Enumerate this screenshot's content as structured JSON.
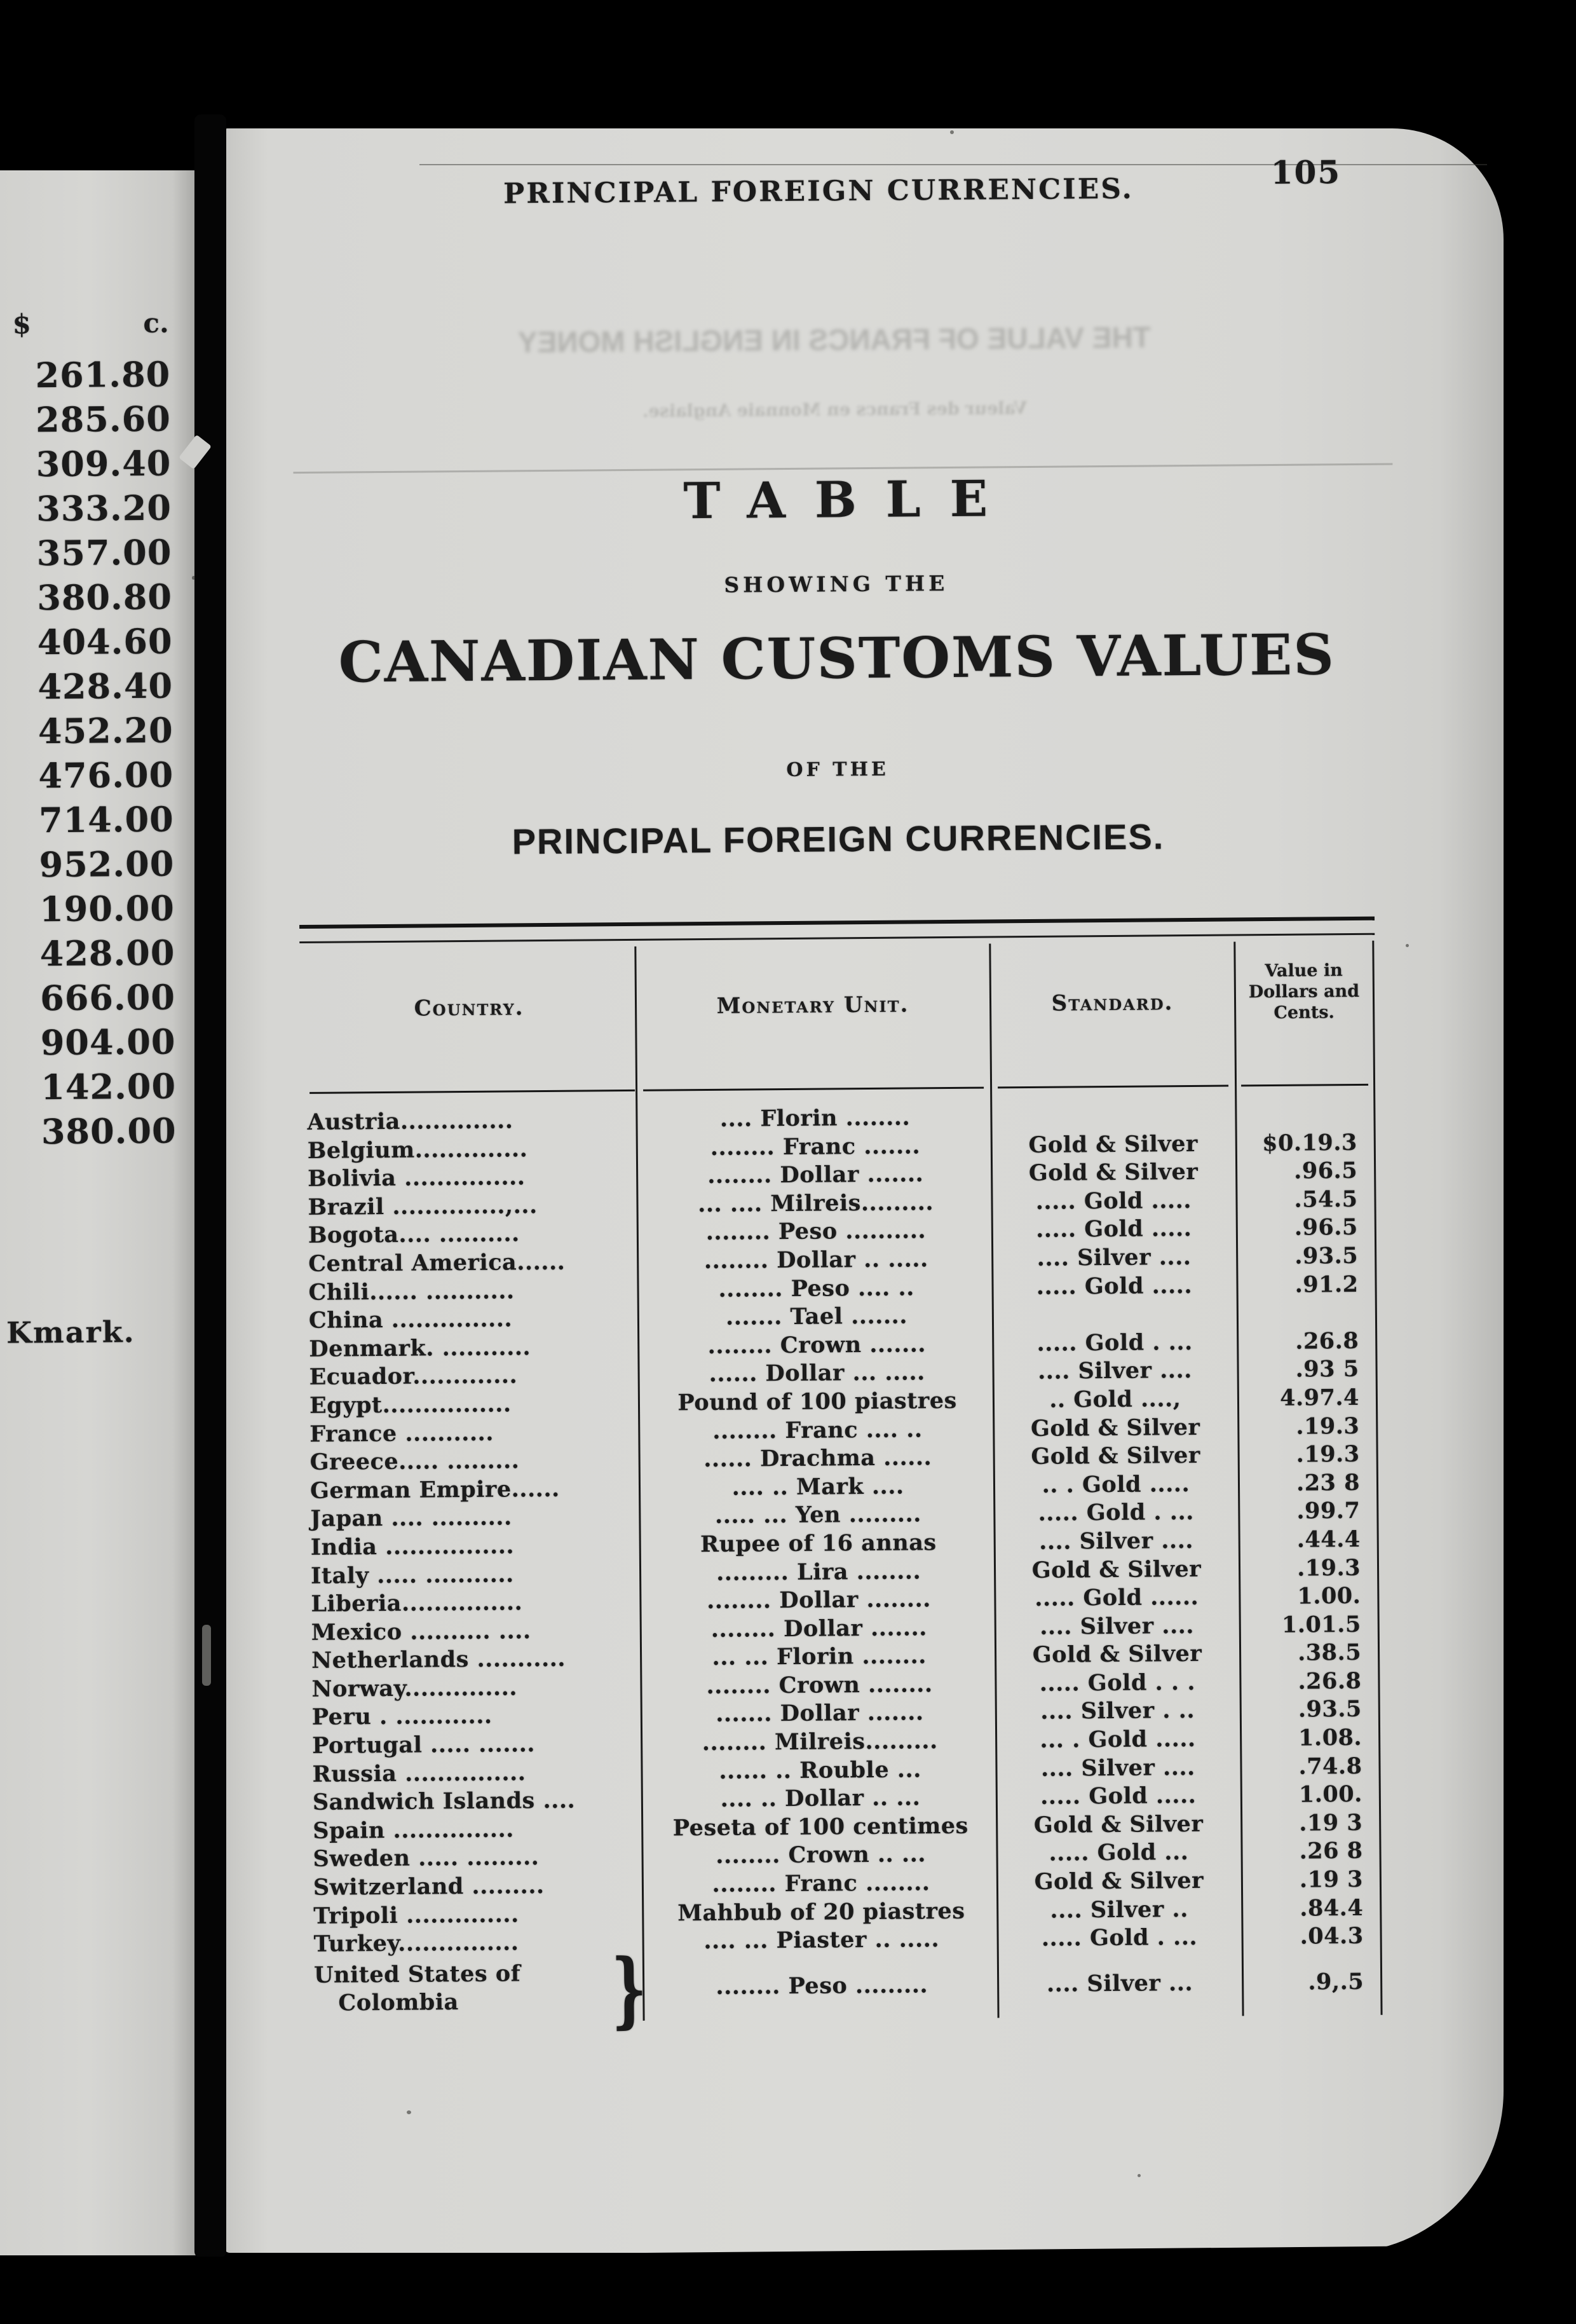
{
  "colors": {
    "paper": "#d7d7d4",
    "ink": "#1b1b1b",
    "background": "#000000"
  },
  "header": {
    "running_title": "PRINCIPAL FOREIGN CURRENCIES.",
    "page_number": "105"
  },
  "title_block": {
    "line1": "TABLE",
    "line2": "SHOWING THE",
    "line3": "CANADIAN CUSTOMS VALUES",
    "line4": "OF THE",
    "line5": "PRINCIPAL FOREIGN CURRENCIES."
  },
  "bleed_through": {
    "line1": "THE VALUE OF FRANCS IN ENGLISH MONEY",
    "line2": "Valeur des Francs en Monnaie Anglaise."
  },
  "margin_column": {
    "header_dollar": "$",
    "header_cents": "c.",
    "values": [
      "261.80",
      "285.60",
      "309.40",
      "333.20",
      "357.00",
      "380.80",
      "404.60",
      "428.40",
      "452.20",
      "476.00",
      "714.00",
      "952.00",
      "190.00",
      "428.00",
      "666.00",
      "904.00",
      "142.00",
      "380.00"
    ],
    "fragment": "Kmark."
  },
  "table": {
    "columns": [
      "Country.",
      "Monetary Unit.",
      "Standard.",
      "Value in\nDollars and\nCents."
    ],
    "brace": "}",
    "rows": [
      {
        "c": "Austria..............",
        "u": ".... Florin ........",
        "s": "",
        "v": ""
      },
      {
        "c": "Belgium..............",
        "u": "........ Franc .......",
        "s": "Gold & Silver",
        "v": "$0.19.3"
      },
      {
        "c": "Bolivia ...............",
        "u": "........ Dollar .......",
        "s": "Gold & Silver",
        "v": ".96.5"
      },
      {
        "c": "Brazil ..............,...",
        "u": "... .... Milreis.........",
        "s": "..... Gold .....",
        "v": ".54.5"
      },
      {
        "c": "Bogota.... ..........",
        "u": "........ Peso ..........",
        "s": "..... Gold .....",
        "v": ".96.5"
      },
      {
        "c": "Central America......",
        "u": "........ Dollar .. .....",
        "s": ".... Silver ....",
        "v": ".93.5"
      },
      {
        "c": "Chili...... ...........",
        "u": "........ Peso .... ..",
        "s": "..... Gold .....",
        "v": ".91.2"
      },
      {
        "c": "China ...............",
        "u": "....... Tael .......",
        "s": "",
        "v": ""
      },
      {
        "c": "Denmark. ...........",
        "u": "........ Crown .......",
        "s": "..... Gold . ...",
        "v": ".26.8"
      },
      {
        "c": "Ecuador.............",
        "u": "...... Dollar ... .....",
        "s": ".... Silver ....",
        "v": ".93 5"
      },
      {
        "c": "Egypt................",
        "u": "Pound of 100 piastres",
        "s": ".. Gold ....,",
        "v": "4.97.4"
      },
      {
        "c": "France ...........",
        "u": "........ Franc .... ..",
        "s": "Gold & Silver",
        "v": ".19.3"
      },
      {
        "c": "Greece..... .........",
        "u": "...... Drachma ......",
        "s": "Gold & Silver",
        "v": ".19.3"
      },
      {
        "c": "German Empire......",
        "u": ".... .. Mark ....",
        "s": ".. . Gold .....",
        "v": ".23 8"
      },
      {
        "c": "Japan .... ..........",
        "u": "..... ... Yen .........",
        "s": "..... Gold . ...",
        "v": ".99.7"
      },
      {
        "c": "India ................",
        "u": "Rupee of 16 annas",
        "s": ".... Silver ....",
        "v": ".44.4"
      },
      {
        "c": "Italy ..... ...........",
        "u": "......... Lira ........",
        "s": "Gold & Silver",
        "v": ".19.3"
      },
      {
        "c": "Liberia...............",
        "u": "........ Dollar ........",
        "s": "..... Gold ......",
        "v": "1.00."
      },
      {
        "c": "Mexico .......... ....",
        "u": "........ Dollar .......",
        "s": ".... Silver ....",
        "v": "1.01.5"
      },
      {
        "c": "Netherlands ...........",
        "u": "... ... Florin ........",
        "s": "Gold & Silver",
        "v": ".38.5"
      },
      {
        "c": "Norway..............",
        "u": "........ Crown ........",
        "s": "..... Gold . . .",
        "v": ".26.8"
      },
      {
        "c": "Peru . ............",
        "u": "....... Dollar .......",
        "s": ".... Silver . ..",
        "v": ".93.5"
      },
      {
        "c": "Portugal ..... .......",
        "u": "........ Milreis.........",
        "s": "... . Gold .....",
        "v": "1.08."
      },
      {
        "c": "Russia ...............",
        "u": "...... .. Rouble ...",
        "s": ".... Silver ....",
        "v": ".74.8"
      },
      {
        "c": "Sandwich Islands ....",
        "u": ".... .. Dollar .. ...",
        "s": "..... Gold .....",
        "v": "1.00."
      },
      {
        "c": "Spain ...............",
        "u": "Peseta of 100 centimes",
        "s": "Gold & Silver",
        "v": ".19 3"
      },
      {
        "c": "Sweden ..... .........",
        "u": "........ Crown .. ...",
        "s": "..... Gold ...",
        "v": ".26 8"
      },
      {
        "c": "Switzerland .........",
        "u": "........ Franc ........",
        "s": "Gold & Silver",
        "v": ".19 3"
      },
      {
        "c": "Tripoli ..............",
        "u": "Mahbub of 20 piastres",
        "s": ".... Silver ..",
        "v": ".84.4"
      },
      {
        "c": "Turkey...............",
        "u": ".... ... Piaster .. .....",
        "s": "..... Gold . ...",
        "v": ".04.3"
      },
      {
        "c": "United States of\n   Colombia",
        "u": "........ Peso .........",
        "s": ".... Silver ...",
        "v": ".9,.5"
      }
    ]
  }
}
